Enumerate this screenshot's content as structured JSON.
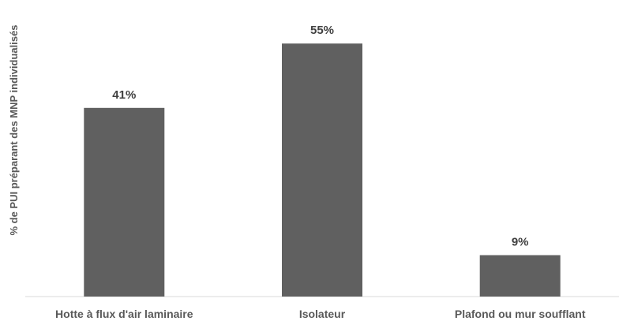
{
  "chart_data": {
    "type": "bar",
    "categories": [
      "Hotte à flux d'air laminaire",
      "Isolateur",
      "Plafond ou mur soufflant"
    ],
    "values": [
      41,
      55,
      9
    ],
    "data_labels": [
      "41%",
      "55%",
      "9%"
    ],
    "title": "",
    "xlabel": "",
    "ylabel": "% de PUI préparant des MNP individualisés",
    "ylim": [
      0,
      60
    ],
    "grid": false,
    "legend": "none",
    "bar_color": "#606060",
    "axis_color": "#d9d9d9"
  }
}
